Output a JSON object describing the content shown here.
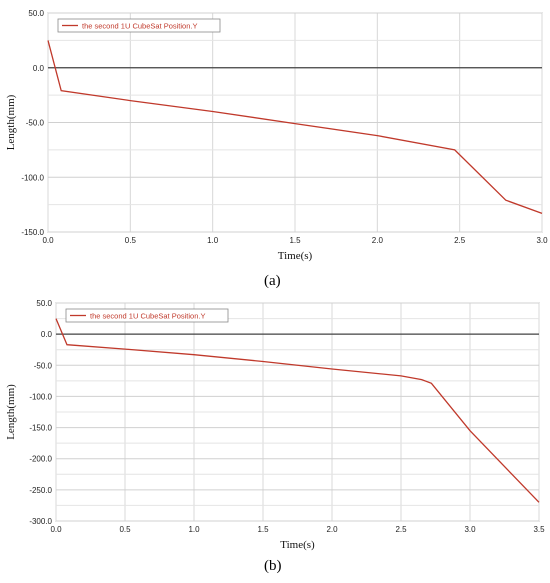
{
  "chart_data": [
    {
      "type": "line",
      "caption": "(a)",
      "xlabel": "Time(s)",
      "ylabel": "Length(mm)",
      "xlim": [
        0.0,
        3.0
      ],
      "ylim": [
        -150.0,
        50.0
      ],
      "xticks": [
        "0.0",
        "0.5",
        "1.0",
        "1.5",
        "2.0",
        "2.5",
        "3.0"
      ],
      "yticks": [
        "50.0",
        "0.0",
        "-50.0",
        "-100.0",
        "-150.0"
      ],
      "xtick_values": [
        0,
        0.5,
        1.0,
        1.5,
        2.0,
        2.5,
        3.0
      ],
      "ytick_values": [
        50,
        0,
        -50,
        -100,
        -150
      ],
      "grid": true,
      "legend_position": "top-left",
      "series": [
        {
          "name": "the second 1U CubeSat Position.Y",
          "color": "#c0392b",
          "x": [
            0.0,
            0.08,
            0.5,
            1.0,
            1.5,
            2.0,
            2.47,
            2.78,
            3.0
          ],
          "y": [
            25,
            -21,
            -30,
            -40,
            -51,
            -62,
            -75,
            -121,
            -133
          ]
        }
      ]
    },
    {
      "type": "line",
      "caption": "(b)",
      "xlabel": "Time(s)",
      "ylabel": "Length(mm)",
      "xlim": [
        0.0,
        3.5
      ],
      "ylim": [
        -300.0,
        50.0
      ],
      "xticks": [
        "0.0",
        "0.5",
        "1.0",
        "1.5",
        "2.0",
        "2.5",
        "3.0",
        "3.5"
      ],
      "yticks": [
        "50.0",
        "0.0",
        "-50.0",
        "-100.0",
        "-150.0",
        "-200.0",
        "-250.0",
        "-300.0"
      ],
      "xtick_values": [
        0,
        0.5,
        1.0,
        1.5,
        2.0,
        2.5,
        3.0,
        3.5
      ],
      "ytick_values": [
        50,
        0,
        -50,
        -100,
        -150,
        -200,
        -250,
        -300
      ],
      "grid": true,
      "legend_position": "top-left",
      "series": [
        {
          "name": "the second 1U CubeSat Position.Y",
          "color": "#c0392b",
          "x": [
            0.0,
            0.08,
            0.5,
            1.0,
            1.5,
            2.0,
            2.5,
            2.65,
            2.72,
            3.0,
            3.5
          ],
          "y": [
            25,
            -17,
            -24,
            -33,
            -44,
            -56,
            -67,
            -73,
            -79,
            -155,
            -270
          ]
        }
      ]
    }
  ]
}
